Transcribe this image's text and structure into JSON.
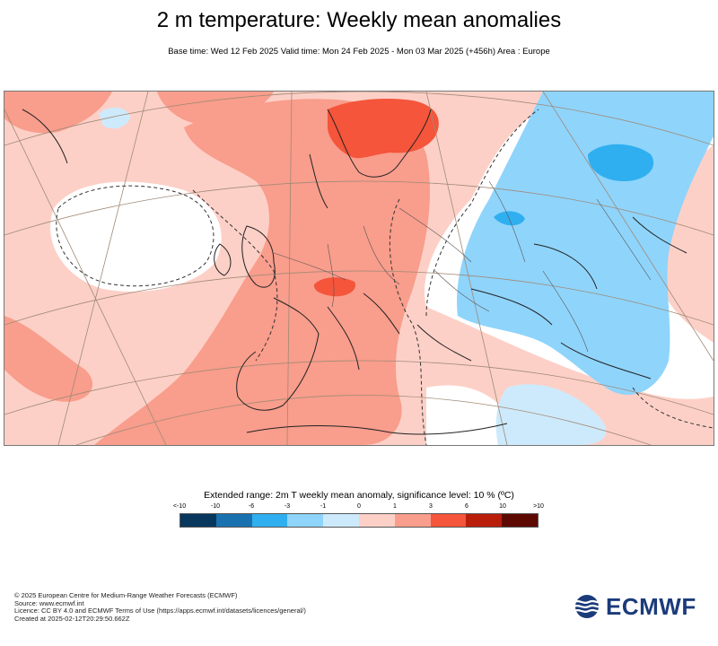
{
  "title": "2 m temperature: Weekly mean anomalies",
  "subtitle": "Base time: Wed 12 Feb 2025 Valid time: Mon 24 Feb 2025 - Mon 03 Mar 2025 (+456h) Area : Europe",
  "legend": {
    "title": "Extended range: 2m T weekly mean anomaly, significance level: 10 % (ºC)",
    "ticks": [
      "<-10",
      "-10",
      "-6",
      "-3",
      "-1",
      "0",
      "1",
      "3",
      "6",
      "10",
      ">10"
    ],
    "colors": [
      "#08375e",
      "#1a71b0",
      "#30aff0",
      "#8fd4fb",
      "#cdeafc",
      "#fdd0c7",
      "#f99d8c",
      "#f4553b",
      "#b91e0b",
      "#5e0a02"
    ]
  },
  "footer": {
    "line1": "© 2025 European Centre for Medium-Range Weather Forecasts (ECMWF)",
    "line2": "Source: www.ecmwf.int",
    "line3": "Licence: CC BY 4.0 and ECMWF Terms of Use (https://apps.ecmwf.int/datasets/licences/general/)",
    "line4": "Created at 2025-02-12T20:29:50.662Z"
  },
  "logo": {
    "text": "ECMWF",
    "color": "#1b3b7a"
  },
  "map": {
    "region": "Europe",
    "anomaly_pattern": {
      "west_and_central_europe": "warm (+1 to +3)",
      "scandinavia": "warm (+3 to +6)",
      "alps": "warm (+3 to +6)",
      "north_atlantic_greenland_sea": "near normal (-1 to +1)",
      "eastern_europe_russia": "cold (-1 to -3)",
      "central_russia": "cold (-3 to -6)",
      "turkey_middle_east": "cold (-1 to -3)"
    }
  }
}
